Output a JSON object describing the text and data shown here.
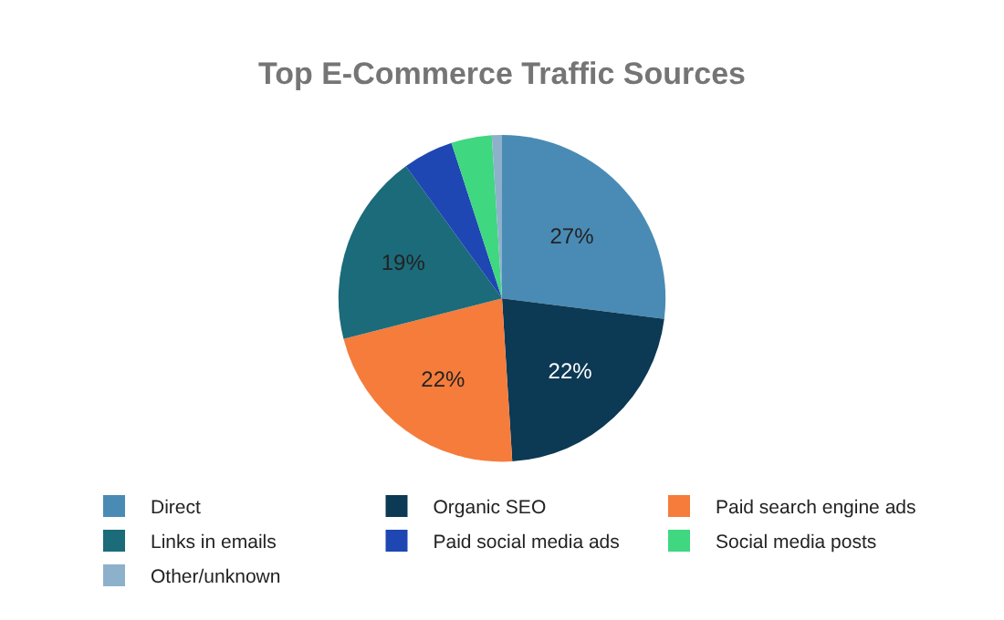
{
  "chart_data": {
    "type": "pie",
    "title": "Top E-Commerce Traffic Sources",
    "categories": [
      "Direct",
      "Organic SEO",
      "Paid search engine ads",
      "Links in emails",
      "Paid social media ads",
      "Social media posts",
      "Other/unknown"
    ],
    "values": [
      27,
      22,
      22,
      19,
      5,
      4,
      1
    ],
    "value_labels": [
      "27%",
      "22%",
      "22%",
      "19%",
      null,
      null,
      null
    ],
    "colors": [
      "#4a8bb5",
      "#0c3954",
      "#f57c3b",
      "#1b6b7a",
      "#1f47b3",
      "#3fd780",
      "#8db1cb"
    ],
    "legend": "bottom"
  }
}
